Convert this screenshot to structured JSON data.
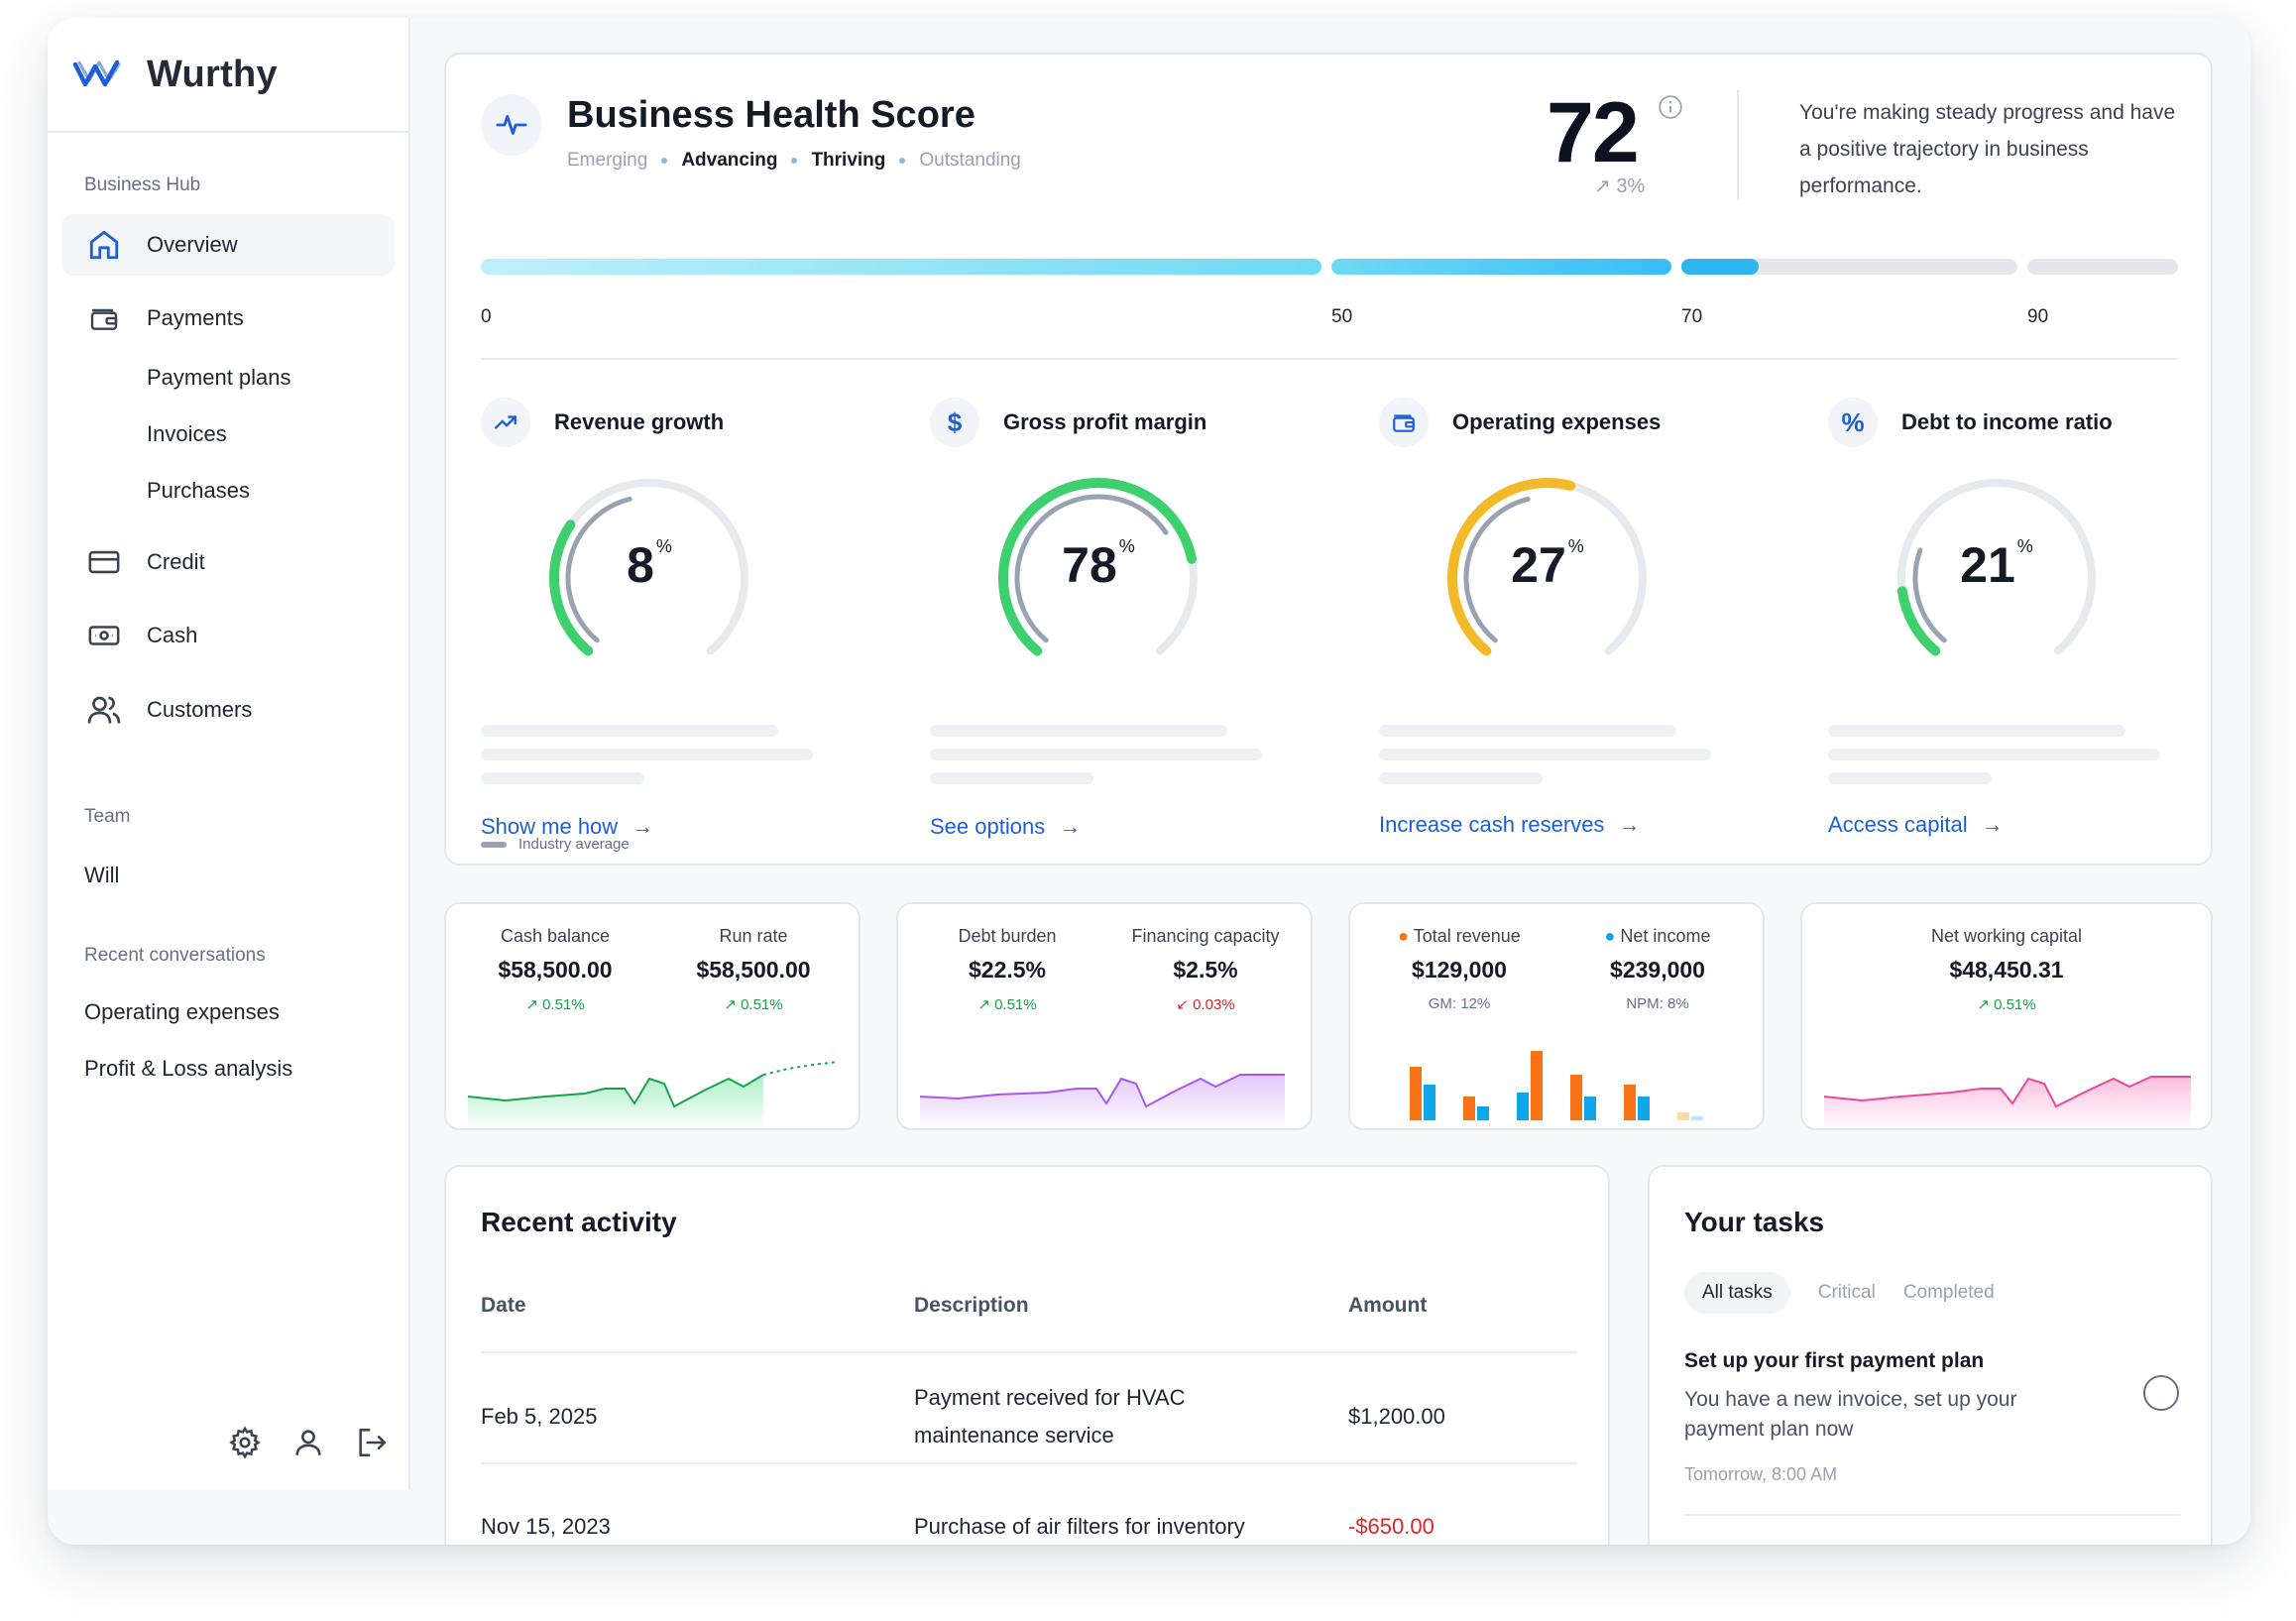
{
  "brand": {
    "name": "Wurthy"
  },
  "sidebar": {
    "hub_label": "Business Hub",
    "items": [
      {
        "label": "Overview",
        "icon": "home-icon"
      },
      {
        "label": "Payments",
        "icon": "wallet-icon"
      },
      {
        "label": "Payment plans"
      },
      {
        "label": "Invoices"
      },
      {
        "label": "Purchases"
      },
      {
        "label": "Credit",
        "icon": "credit-card-icon"
      },
      {
        "label": "Cash",
        "icon": "cash-icon"
      },
      {
        "label": "Customers",
        "icon": "users-icon"
      }
    ],
    "team_label": "Team",
    "team_member": "Will",
    "recent_label": "Recent conversations",
    "recent": [
      "Operating expenses",
      "Profit & Loss analysis"
    ]
  },
  "health": {
    "title": "Business Health Score",
    "tiers": [
      "Emerging",
      "Advancing",
      "Thriving",
      "Outstanding"
    ],
    "score": "72",
    "delta": "3%",
    "description": "You're making steady progress and have a positive trajectory in business performance.",
    "ticks": [
      "0",
      "50",
      "70",
      "90"
    ],
    "score_value": 72,
    "legend": "Industry average"
  },
  "metrics": [
    {
      "title": "Revenue growth",
      "icon": "trend-up-icon",
      "value": "8",
      "unit": "%",
      "link": "Show me how",
      "fill": 0.3,
      "avg": 0.45,
      "color": "#3ecf6e"
    },
    {
      "title": "Gross profit margin",
      "icon": "dollar-icon",
      "icon_glyph": "$",
      "value": "78",
      "unit": "%",
      "link": "See options",
      "fill": 0.78,
      "avg": 0.7,
      "color": "#3ecf6e"
    },
    {
      "title": "Operating expenses",
      "icon": "wallet-icon",
      "value": "27",
      "unit": "%",
      "link": "Increase cash reserves",
      "fill": 0.55,
      "avg": 0.45,
      "color": "#f4b929"
    },
    {
      "title": "Debt to income ratio",
      "icon": "percent-icon",
      "icon_glyph": "%",
      "value": "21",
      "unit": "%",
      "link": "Access capital",
      "fill": 0.15,
      "avg": 0.25,
      "color": "#3ecf6e"
    }
  ],
  "mini_cards": [
    {
      "left_label": "Cash balance",
      "left_value": "$58,500.00",
      "left_delta": "0.51%",
      "right_label": "Run rate",
      "right_value": "$58,500.00",
      "right_delta": "0.51%"
    },
    {
      "left_label": "Debt burden",
      "left_value": "$22.5%",
      "left_delta": "0.51%",
      "right_label": "Financing capacity",
      "right_value": "$2.5%",
      "right_delta": "0.03%"
    },
    {
      "left_label": "Total revenue",
      "left_value": "$129,000",
      "left_sub": "GM: 12%",
      "right_label": "Net income",
      "right_value": "$239,000",
      "right_sub": "NPM: 8%"
    },
    {
      "label": "Net working capital",
      "value": "$48,450.31",
      "delta": "0.51%"
    }
  ],
  "colors": {
    "accent": "#1f5fd6",
    "up": "#16a34a",
    "down": "#dc2626",
    "orange": "#f97316",
    "blue": "#0ea5e9"
  },
  "activity": {
    "title": "Recent activity",
    "columns": [
      "Date",
      "Description",
      "Amount"
    ],
    "rows": [
      {
        "date": "Feb 5, 2025",
        "description": "Payment received for HVAC maintenance service",
        "amount": "$1,200.00"
      },
      {
        "date": "Nov 15, 2023",
        "description": "Purchase of air filters for inventory",
        "amount": "-$650.00"
      }
    ]
  },
  "tasks": {
    "title": "Your tasks",
    "tabs": [
      "All tasks",
      "Critical",
      "Completed"
    ],
    "item": {
      "title": "Set up your first payment plan",
      "description": "You have a new invoice, set up your payment plan now",
      "time": "Tomorrow, 8:00 AM"
    }
  }
}
